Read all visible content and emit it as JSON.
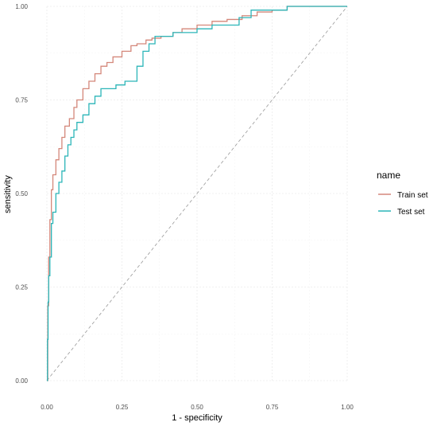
{
  "chart_data": {
    "type": "line",
    "title": "",
    "xlabel": "1 - specificity",
    "ylabel": "sensitivity",
    "xlim": [
      0,
      1
    ],
    "ylim": [
      0,
      1
    ],
    "x_ticks": [
      "0.00",
      "0.25",
      "0.50",
      "0.75",
      "1.00"
    ],
    "y_ticks": [
      "0.00",
      "0.25",
      "0.50",
      "0.75",
      "1.00"
    ],
    "grid": true,
    "legend": {
      "title": "name",
      "position": "right"
    },
    "reference_line": {
      "type": "diagonal",
      "style": "dashed",
      "color": "#999999"
    },
    "series": [
      {
        "name": "Train set",
        "color": "#D4877A",
        "x": [
          0.0,
          0.003,
          0.006,
          0.01,
          0.015,
          0.02,
          0.03,
          0.04,
          0.05,
          0.06,
          0.075,
          0.09,
          0.1,
          0.12,
          0.14,
          0.16,
          0.18,
          0.2,
          0.22,
          0.25,
          0.28,
          0.3,
          0.33,
          0.35,
          0.38,
          0.42,
          0.45,
          0.5,
          0.55,
          0.6,
          0.65,
          0.7,
          0.75,
          0.8,
          0.85,
          0.9,
          1.0
        ],
        "y": [
          0.0,
          0.2,
          0.33,
          0.43,
          0.51,
          0.55,
          0.59,
          0.62,
          0.65,
          0.68,
          0.7,
          0.73,
          0.75,
          0.78,
          0.8,
          0.82,
          0.84,
          0.85,
          0.865,
          0.88,
          0.895,
          0.9,
          0.91,
          0.915,
          0.92,
          0.93,
          0.94,
          0.95,
          0.96,
          0.965,
          0.975,
          0.985,
          0.99,
          1.0,
          1.0,
          1.0,
          1.0
        ]
      },
      {
        "name": "Test set",
        "color": "#2BB5B8",
        "x": [
          0.0,
          0.002,
          0.004,
          0.006,
          0.01,
          0.015,
          0.02,
          0.03,
          0.04,
          0.05,
          0.06,
          0.07,
          0.08,
          0.09,
          0.1,
          0.12,
          0.14,
          0.16,
          0.18,
          0.2,
          0.23,
          0.26,
          0.3,
          0.32,
          0.34,
          0.36,
          0.38,
          0.42,
          0.46,
          0.5,
          0.55,
          0.6,
          0.64,
          0.68,
          0.7,
          0.75,
          0.8,
          1.0
        ],
        "y": [
          0.0,
          0.11,
          0.21,
          0.28,
          0.33,
          0.42,
          0.45,
          0.5,
          0.53,
          0.56,
          0.6,
          0.63,
          0.65,
          0.67,
          0.69,
          0.71,
          0.74,
          0.76,
          0.78,
          0.78,
          0.79,
          0.8,
          0.84,
          0.88,
          0.9,
          0.92,
          0.92,
          0.93,
          0.93,
          0.94,
          0.95,
          0.95,
          0.97,
          0.99,
          0.99,
          0.99,
          1.0,
          1.0
        ]
      }
    ]
  }
}
